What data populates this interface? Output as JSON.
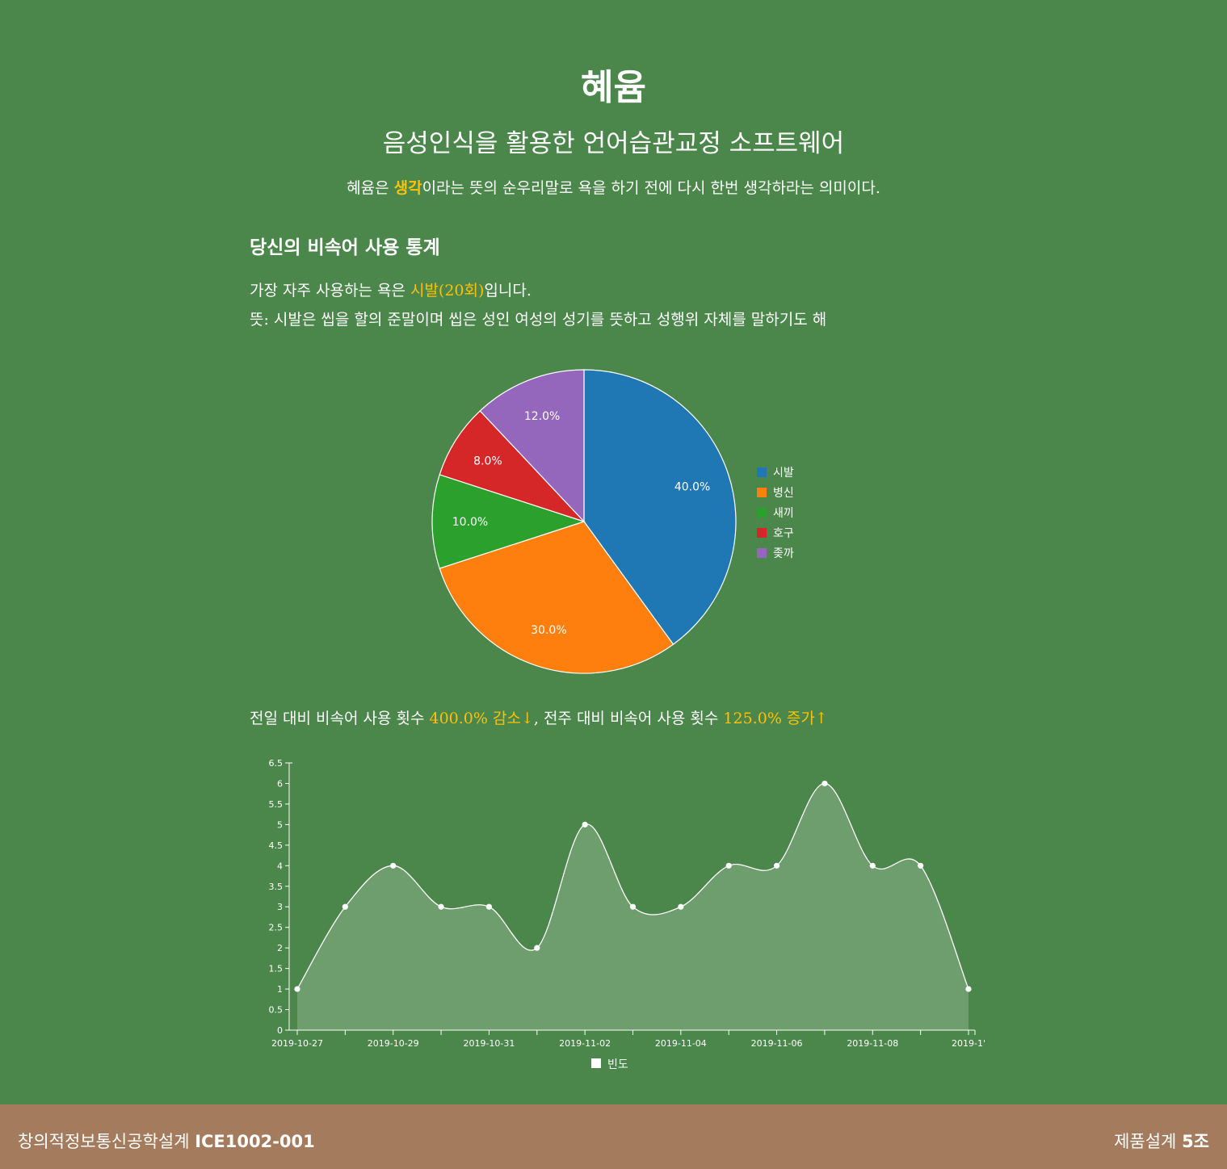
{
  "header": {
    "title": "혜윰",
    "subtitle": "음성인식을 활용한 언어습관교정 소프트웨어",
    "meaning_prefix": "혜윰은 ",
    "meaning_highlight": "생각",
    "meaning_suffix": "이라는 뜻의 순우리말로 욕을 하기 전에 다시 한번 생각하라는 의미이다."
  },
  "stats": {
    "section_title": "당신의 비속어 사용 통계",
    "most_used_prefix": "가장 자주 사용하는 욕은 ",
    "most_used_word": "시발(20회)",
    "most_used_suffix": "입니다.",
    "definition": "뜻: 시발은 씹을 할의 준말이며 씹은 성인 여성의 성기를 뜻하고 성행위 자체를 말하기도 해",
    "compare_prefix": "전일 대비 비속어 사용 횟수 ",
    "compare_day": "400.0% 감소↓",
    "compare_mid": ", 전주 대비 비속어 사용 횟수 ",
    "compare_week": "125.0% 증가↑"
  },
  "footer": {
    "left_text": "창의적정보통신공학설계 ",
    "left_bold": "ICE1002-001",
    "right_text": "제품설계 ",
    "right_bold": "5조"
  },
  "chart_data": [
    {
      "type": "pie",
      "labels": [
        "시발",
        "병신",
        "새끼",
        "호구",
        "좆까"
      ],
      "values": [
        40.0,
        30.0,
        10.0,
        8.0,
        12.0
      ],
      "data_labels": [
        "40.0%",
        "30.0%",
        "10.0%",
        "8.0%",
        "12.0%"
      ],
      "colors": [
        "#1f77b4",
        "#ff7f0e",
        "#2ca02c",
        "#d62728",
        "#9467bd"
      ],
      "legend": "right"
    },
    {
      "type": "area",
      "x": [
        "2019-10-27",
        "2019-10-28",
        "2019-10-29",
        "2019-10-30",
        "2019-10-31",
        "2019-11-01",
        "2019-11-02",
        "2019-11-03",
        "2019-11-04",
        "2019-11-05",
        "2019-11-06",
        "2019-11-07",
        "2019-11-08",
        "2019-11-09",
        "2019-11-10"
      ],
      "x_tick_labels": [
        "2019-10-27",
        "2019-10-29",
        "2019-10-31",
        "2019-11-02",
        "2019-11-04",
        "2019-11-06",
        "2019-11-08",
        "2019-1'"
      ],
      "series": [
        {
          "name": "빈도",
          "values": [
            1,
            3,
            4,
            3,
            3,
            2,
            5,
            3,
            3,
            4,
            4,
            6,
            4,
            4,
            1
          ]
        }
      ],
      "ylim": [
        0,
        6.5
      ],
      "y_ticks": [
        "0",
        "0.5",
        "1",
        "1.5",
        "2",
        "2.5",
        "3",
        "3.5",
        "4",
        "4.5",
        "5",
        "5.5",
        "6",
        "6.5"
      ],
      "fill_color": "#6e9e6e",
      "line_color": "#ffffff",
      "legend": "bottom"
    }
  ]
}
